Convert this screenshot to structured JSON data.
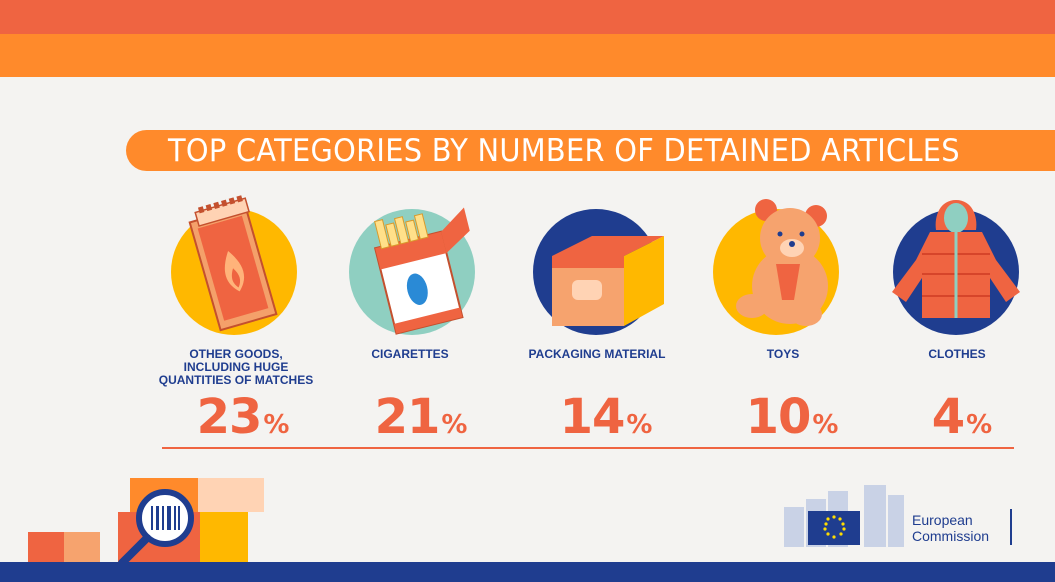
{
  "title": "TOP CATEGORIES BY NUMBER OF DETAINED ARTICLES",
  "colors": {
    "accent_red": "#ef6441",
    "accent_orange": "#ff8a2b",
    "brand_blue": "#1f3d8f",
    "yellow": "#ffb800",
    "teal": "#8fcfc1"
  },
  "chart_data": {
    "type": "bar",
    "title": "TOP CATEGORIES BY NUMBER OF DETAINED ARTICLES",
    "categories": [
      "OTHER GOODS, INCLUDING HUGE QUANTITIES OF MATCHES",
      "CIGARETTES",
      "PACKAGING MATERIAL",
      "TOYS",
      "CLOTHES"
    ],
    "values": [
      23,
      21,
      14,
      10,
      4
    ],
    "unit": "%",
    "icons": [
      "matchbox-icon",
      "cigarette-pack-icon",
      "cardboard-box-icon",
      "teddy-bear-icon",
      "jacket-icon"
    ]
  },
  "items": [
    {
      "label_lines": [
        "OTHER GOODS,",
        "INCLUDING HUGE",
        "QUANTITIES OF MATCHES"
      ],
      "value": "23",
      "unit": "%"
    },
    {
      "label_lines": [
        "CIGARETTES"
      ],
      "value": "21",
      "unit": "%"
    },
    {
      "label_lines": [
        "PACKAGING MATERIAL"
      ],
      "value": "14",
      "unit": "%"
    },
    {
      "label_lines": [
        "TOYS"
      ],
      "value": "10",
      "unit": "%"
    },
    {
      "label_lines": [
        "CLOTHES"
      ],
      "value": "4",
      "unit": "%"
    }
  ],
  "footer": {
    "logo_line1": "European",
    "logo_line2": "Commission"
  }
}
